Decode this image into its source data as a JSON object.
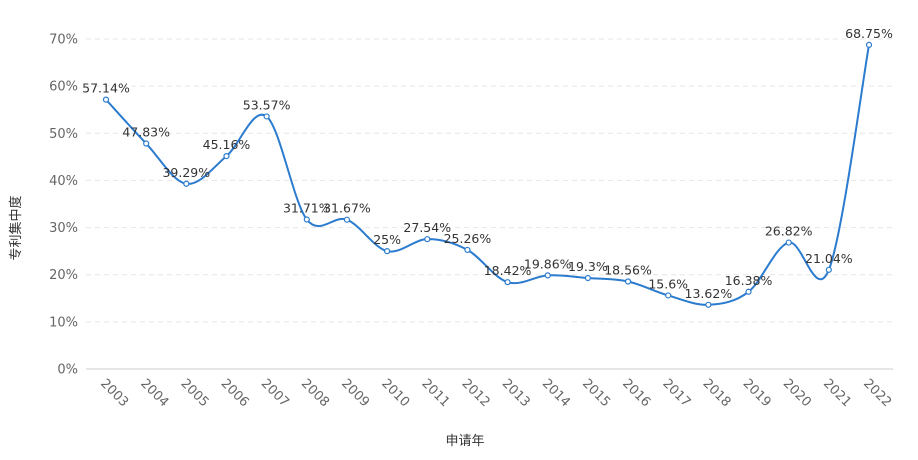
{
  "chart_data": {
    "type": "line",
    "xlabel": "申请年",
    "ylabel": "专利集中度",
    "ylim": [
      0,
      70
    ],
    "yticks": [
      0,
      10,
      20,
      30,
      40,
      50,
      60,
      70
    ],
    "ytick_labels": [
      "0%",
      "10%",
      "20%",
      "30%",
      "40%",
      "50%",
      "60%",
      "70%"
    ],
    "grid": "horizontal dashed",
    "line_color": "#2b7bce",
    "categories": [
      "2003",
      "2004",
      "2005",
      "2006",
      "2007",
      "2008",
      "2009",
      "2010",
      "2011",
      "2012",
      "2013",
      "2014",
      "2015",
      "2016",
      "2017",
      "2018",
      "2019",
      "2020",
      "2021",
      "2022"
    ],
    "values": [
      57.14,
      47.83,
      39.29,
      45.16,
      53.57,
      31.71,
      31.67,
      25,
      27.54,
      25.26,
      18.42,
      19.86,
      19.3,
      18.56,
      15.6,
      13.62,
      16.38,
      26.82,
      21.04,
      68.75
    ],
    "data_labels": [
      "57.14%",
      "47.83%",
      "39.29%",
      "45.16%",
      "53.57%",
      "31.71%",
      "31.67%",
      "25%",
      "27.54%",
      "25.26%",
      "18.42%",
      "19.86%",
      "19.3%",
      "18.56%",
      "15.6%",
      "13.62%",
      "16.38%",
      "26.82%",
      "21.04%",
      "68.75%"
    ]
  }
}
